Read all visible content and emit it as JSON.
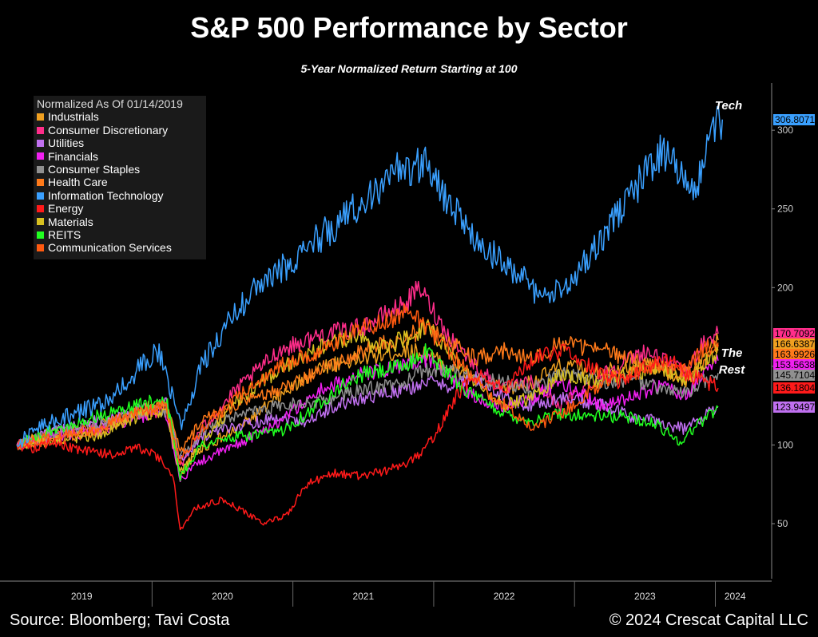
{
  "title": "S&P 500 Performance by Sector",
  "subtitle": "5-Year Normalized Return Starting at 100",
  "footer": {
    "source": "Source: Bloomberg; Tavi Costa",
    "copyright": "© 2024 Crescat Capital LLC"
  },
  "legend_title": "Normalized As Of 01/14/2019",
  "annotations": {
    "tech": "Tech",
    "rest_line1": "The",
    "rest_line2": "Rest"
  },
  "chart_data": {
    "type": "line",
    "x_axis": {
      "ticks": [
        "2019",
        "2020",
        "2021",
        "2022",
        "2023",
        "2024"
      ]
    },
    "y_axis": {
      "ticks": [
        50,
        100,
        150,
        200,
        250,
        300
      ],
      "ylim": [
        15,
        330
      ],
      "position": "right"
    },
    "grid": false,
    "legend_position": "top-left",
    "series": [
      {
        "name": "Industrials",
        "color": "#f0a020",
        "points": [
          [
            2019.04,
            100
          ],
          [
            2019.3,
            108
          ],
          [
            2019.6,
            112
          ],
          [
            2019.9,
            120
          ],
          [
            2020.1,
            125
          ],
          [
            2020.2,
            80
          ],
          [
            2020.3,
            95
          ],
          [
            2020.6,
            110
          ],
          [
            2020.9,
            130
          ],
          [
            2021.2,
            150
          ],
          [
            2021.5,
            155
          ],
          [
            2021.8,
            160
          ],
          [
            2021.95,
            158
          ],
          [
            2022.1,
            150
          ],
          [
            2022.3,
            142
          ],
          [
            2022.5,
            135
          ],
          [
            2022.7,
            140
          ],
          [
            2022.9,
            150
          ],
          [
            2023.2,
            148
          ],
          [
            2023.5,
            152
          ],
          [
            2023.7,
            145
          ],
          [
            2023.8,
            140
          ],
          [
            2023.9,
            155
          ],
          [
            2024.02,
            166.6
          ]
        ],
        "end_label": "166.6387"
      },
      {
        "name": "Consumer Discretionary",
        "color": "#ff2d8a",
        "points": [
          [
            2019.04,
            100
          ],
          [
            2019.3,
            107
          ],
          [
            2019.6,
            110
          ],
          [
            2019.9,
            120
          ],
          [
            2020.1,
            122
          ],
          [
            2020.2,
            85
          ],
          [
            2020.35,
            110
          ],
          [
            2020.6,
            135
          ],
          [
            2020.9,
            160
          ],
          [
            2021.2,
            170
          ],
          [
            2021.5,
            175
          ],
          [
            2021.8,
            190
          ],
          [
            2021.9,
            200
          ],
          [
            2022.1,
            170
          ],
          [
            2022.3,
            150
          ],
          [
            2022.5,
            135
          ],
          [
            2022.7,
            140
          ],
          [
            2022.9,
            125
          ],
          [
            2023.2,
            145
          ],
          [
            2023.5,
            160
          ],
          [
            2023.7,
            150
          ],
          [
            2023.8,
            145
          ],
          [
            2023.9,
            165
          ],
          [
            2024.02,
            170.7
          ]
        ],
        "end_label": "170.7092"
      },
      {
        "name": "Utilities",
        "color": "#c070f0",
        "points": [
          [
            2019.04,
            100
          ],
          [
            2019.3,
            108
          ],
          [
            2019.6,
            115
          ],
          [
            2019.9,
            122
          ],
          [
            2020.1,
            128
          ],
          [
            2020.2,
            90
          ],
          [
            2020.35,
            105
          ],
          [
            2020.6,
            112
          ],
          [
            2020.9,
            118
          ],
          [
            2021.1,
            115
          ],
          [
            2021.3,
            125
          ],
          [
            2021.5,
            130
          ],
          [
            2021.8,
            135
          ],
          [
            2021.95,
            140
          ],
          [
            2022.1,
            138
          ],
          [
            2022.3,
            142
          ],
          [
            2022.5,
            130
          ],
          [
            2022.7,
            125
          ],
          [
            2022.9,
            130
          ],
          [
            2023.2,
            125
          ],
          [
            2023.4,
            118
          ],
          [
            2023.6,
            115
          ],
          [
            2023.7,
            112
          ],
          [
            2023.8,
            110
          ],
          [
            2023.9,
            118
          ],
          [
            2024.02,
            123.9
          ]
        ],
        "end_label": "123.9497"
      },
      {
        "name": "Financials",
        "color": "#f020f0",
        "points": [
          [
            2019.04,
            100
          ],
          [
            2019.3,
            105
          ],
          [
            2019.6,
            108
          ],
          [
            2019.9,
            118
          ],
          [
            2020.1,
            120
          ],
          [
            2020.2,
            78
          ],
          [
            2020.35,
            90
          ],
          [
            2020.6,
            100
          ],
          [
            2020.9,
            115
          ],
          [
            2021.2,
            135
          ],
          [
            2021.5,
            145
          ],
          [
            2021.8,
            150
          ],
          [
            2021.95,
            155
          ],
          [
            2022.1,
            145
          ],
          [
            2022.3,
            130
          ],
          [
            2022.5,
            125
          ],
          [
            2022.7,
            130
          ],
          [
            2022.9,
            140
          ],
          [
            2023.2,
            125
          ],
          [
            2023.4,
            130
          ],
          [
            2023.6,
            138
          ],
          [
            2023.8,
            132
          ],
          [
            2023.9,
            145
          ],
          [
            2024.02,
            153.6
          ]
        ],
        "end_label": "153.5638"
      },
      {
        "name": "Consumer Staples",
        "color": "#909090",
        "points": [
          [
            2019.04,
            100
          ],
          [
            2019.3,
            108
          ],
          [
            2019.6,
            112
          ],
          [
            2019.9,
            120
          ],
          [
            2020.1,
            122
          ],
          [
            2020.2,
            92
          ],
          [
            2020.35,
            108
          ],
          [
            2020.6,
            118
          ],
          [
            2020.9,
            125
          ],
          [
            2021.2,
            128
          ],
          [
            2021.5,
            135
          ],
          [
            2021.8,
            140
          ],
          [
            2021.95,
            148
          ],
          [
            2022.1,
            148
          ],
          [
            2022.3,
            142
          ],
          [
            2022.5,
            140
          ],
          [
            2022.7,
            135
          ],
          [
            2022.9,
            145
          ],
          [
            2023.2,
            140
          ],
          [
            2023.4,
            142
          ],
          [
            2023.6,
            136
          ],
          [
            2023.8,
            132
          ],
          [
            2023.9,
            140
          ],
          [
            2024.02,
            145.7
          ]
        ],
        "end_label": "145.7104"
      },
      {
        "name": "Health Care",
        "color": "#ff7a1a",
        "points": [
          [
            2019.04,
            100
          ],
          [
            2019.3,
            104
          ],
          [
            2019.6,
            108
          ],
          [
            2019.9,
            122
          ],
          [
            2020.1,
            126
          ],
          [
            2020.2,
            95
          ],
          [
            2020.35,
            115
          ],
          [
            2020.6,
            125
          ],
          [
            2020.9,
            135
          ],
          [
            2021.2,
            148
          ],
          [
            2021.5,
            160
          ],
          [
            2021.8,
            168
          ],
          [
            2021.95,
            175
          ],
          [
            2022.1,
            165
          ],
          [
            2022.3,
            155
          ],
          [
            2022.5,
            160
          ],
          [
            2022.7,
            155
          ],
          [
            2022.9,
            165
          ],
          [
            2023.2,
            160
          ],
          [
            2023.4,
            155
          ],
          [
            2023.6,
            150
          ],
          [
            2023.8,
            145
          ],
          [
            2023.9,
            152
          ],
          [
            2024.02,
            163.9
          ]
        ],
        "end_label": "163.9926"
      },
      {
        "name": "Information Technology",
        "color": "#3aa0ff",
        "points": [
          [
            2019.04,
            100
          ],
          [
            2019.2,
            112
          ],
          [
            2019.45,
            120
          ],
          [
            2019.7,
            128
          ],
          [
            2019.9,
            148
          ],
          [
            2020.05,
            160
          ],
          [
            2020.15,
            130
          ],
          [
            2020.2,
            112
          ],
          [
            2020.35,
            150
          ],
          [
            2020.55,
            180
          ],
          [
            2020.75,
            200
          ],
          [
            2020.9,
            210
          ],
          [
            2021.1,
            225
          ],
          [
            2021.3,
            240
          ],
          [
            2021.55,
            260
          ],
          [
            2021.75,
            275
          ],
          [
            2021.95,
            280
          ],
          [
            2022.1,
            255
          ],
          [
            2022.3,
            230
          ],
          [
            2022.5,
            215
          ],
          [
            2022.65,
            205
          ],
          [
            2022.78,
            192
          ],
          [
            2022.95,
            200
          ],
          [
            2023.05,
            215
          ],
          [
            2023.25,
            240
          ],
          [
            2023.45,
            265
          ],
          [
            2023.6,
            285
          ],
          [
            2023.75,
            275
          ],
          [
            2023.88,
            265
          ],
          [
            2023.95,
            295
          ],
          [
            2024.05,
            306.8
          ]
        ],
        "end_label": "306.8071"
      },
      {
        "name": "Energy",
        "color": "#ff1a1a",
        "points": [
          [
            2019.04,
            100
          ],
          [
            2019.15,
            98
          ],
          [
            2019.3,
            102
          ],
          [
            2019.5,
            96
          ],
          [
            2019.7,
            94
          ],
          [
            2019.9,
            98
          ],
          [
            2020.05,
            92
          ],
          [
            2020.15,
            80
          ],
          [
            2020.2,
            45
          ],
          [
            2020.3,
            60
          ],
          [
            2020.5,
            65
          ],
          [
            2020.8,
            50
          ],
          [
            2020.95,
            55
          ],
          [
            2021.1,
            75
          ],
          [
            2021.3,
            82
          ],
          [
            2021.5,
            80
          ],
          [
            2021.7,
            85
          ],
          [
            2021.85,
            90
          ],
          [
            2022.0,
            105
          ],
          [
            2022.15,
            130
          ],
          [
            2022.3,
            145
          ],
          [
            2022.5,
            135
          ],
          [
            2022.7,
            155
          ],
          [
            2022.9,
            160
          ],
          [
            2023.1,
            150
          ],
          [
            2023.3,
            140
          ],
          [
            2023.5,
            150
          ],
          [
            2023.7,
            155
          ],
          [
            2023.8,
            145
          ],
          [
            2023.9,
            142
          ],
          [
            2024.02,
            136.2
          ]
        ],
        "end_label": "136.1804"
      },
      {
        "name": "Materials",
        "color": "#d8c020",
        "points": [
          [
            2019.04,
            100
          ],
          [
            2019.3,
            103
          ],
          [
            2019.6,
            106
          ],
          [
            2019.9,
            118
          ],
          [
            2020.1,
            122
          ],
          [
            2020.2,
            82
          ],
          [
            2020.35,
            100
          ],
          [
            2020.6,
            128
          ],
          [
            2020.9,
            148
          ],
          [
            2021.2,
            162
          ],
          [
            2021.45,
            170
          ],
          [
            2021.6,
            160
          ],
          [
            2021.8,
            168
          ],
          [
            2021.95,
            175
          ],
          [
            2022.1,
            160
          ],
          [
            2022.3,
            140
          ],
          [
            2022.5,
            125
          ],
          [
            2022.7,
            130
          ],
          [
            2022.9,
            145
          ],
          [
            2023.2,
            140
          ],
          [
            2023.4,
            145
          ],
          [
            2023.6,
            150
          ],
          [
            2023.8,
            140
          ],
          [
            2023.9,
            150
          ],
          [
            2024.02,
            160.0
          ]
        ]
      },
      {
        "name": "REITS",
        "color": "#20ff20",
        "points": [
          [
            2019.04,
            100
          ],
          [
            2019.3,
            110
          ],
          [
            2019.6,
            118
          ],
          [
            2019.9,
            125
          ],
          [
            2020.1,
            130
          ],
          [
            2020.2,
            80
          ],
          [
            2020.35,
            100
          ],
          [
            2020.6,
            105
          ],
          [
            2020.9,
            108
          ],
          [
            2021.1,
            120
          ],
          [
            2021.3,
            135
          ],
          [
            2021.5,
            145
          ],
          [
            2021.8,
            150
          ],
          [
            2021.95,
            160
          ],
          [
            2022.1,
            145
          ],
          [
            2022.3,
            130
          ],
          [
            2022.5,
            120
          ],
          [
            2022.7,
            115
          ],
          [
            2022.9,
            120
          ],
          [
            2023.2,
            118
          ],
          [
            2023.4,
            118
          ],
          [
            2023.6,
            112
          ],
          [
            2023.75,
            102
          ],
          [
            2023.9,
            115
          ],
          [
            2024.02,
            124.0
          ]
        ]
      },
      {
        "name": "Communication Services",
        "color": "#ff5a10",
        "points": [
          [
            2019.04,
            100
          ],
          [
            2019.3,
            106
          ],
          [
            2019.6,
            110
          ],
          [
            2019.9,
            122
          ],
          [
            2020.1,
            124
          ],
          [
            2020.2,
            90
          ],
          [
            2020.35,
            110
          ],
          [
            2020.6,
            130
          ],
          [
            2020.9,
            150
          ],
          [
            2021.2,
            160
          ],
          [
            2021.5,
            175
          ],
          [
            2021.7,
            180
          ],
          [
            2021.8,
            185
          ],
          [
            2021.95,
            175
          ],
          [
            2022.1,
            160
          ],
          [
            2022.3,
            140
          ],
          [
            2022.5,
            125
          ],
          [
            2022.7,
            110
          ],
          [
            2022.9,
            120
          ],
          [
            2023.2,
            140
          ],
          [
            2023.4,
            145
          ],
          [
            2023.6,
            150
          ],
          [
            2023.8,
            148
          ],
          [
            2023.9,
            160
          ],
          [
            2024.02,
            165.0
          ]
        ]
      }
    ]
  }
}
